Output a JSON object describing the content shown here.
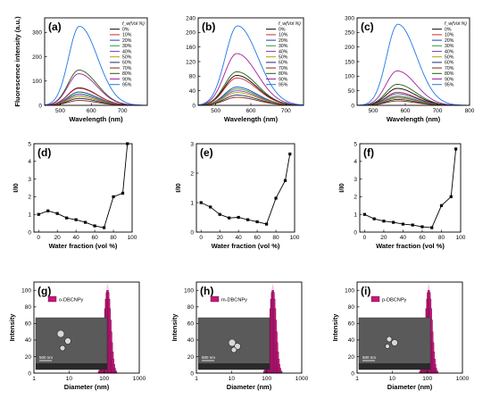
{
  "figure": {
    "panels": [
      "(a)",
      "(b)",
      "(c)",
      "(d)",
      "(e)",
      "(f)",
      "(g)",
      "(h)",
      "(i)"
    ],
    "legend_title": "f_w(Vol %)",
    "legend_labels": [
      "0%",
      "10%",
      "20%",
      "30%",
      "40%",
      "50%",
      "60%",
      "70%",
      "80%",
      "90%",
      "95%"
    ],
    "legend_colors": [
      "#000000",
      "#d62728",
      "#1f3fbf",
      "#2ca02c",
      "#8e44ad",
      "#b0a000",
      "#1a2a6c",
      "#8b2500",
      "#2a5a10",
      "#a020a0",
      "#1f77e4"
    ],
    "sem_scale_label": "500 nm"
  },
  "chart_data": [
    {
      "type": "line",
      "panel": "(a)",
      "xlabel": "Wavelength (nm)",
      "ylabel": "Fluorescence intensity (a.u.)",
      "xlim": [
        450,
        780
      ],
      "ylim": [
        0,
        360
      ],
      "xticks": [
        500,
        600,
        700
      ],
      "yticks": [
        0,
        100,
        200,
        300
      ],
      "peak_wavelength": 560,
      "series": [
        {
          "name": "0%",
          "peak": 72
        },
        {
          "name": "10%",
          "peak": 70
        },
        {
          "name": "20%",
          "peak": 55
        },
        {
          "name": "30%",
          "peak": 48
        },
        {
          "name": "40%",
          "peak": 42
        },
        {
          "name": "50%",
          "peak": 35
        },
        {
          "name": "60%",
          "peak": 28
        },
        {
          "name": "70%",
          "peak": 20
        },
        {
          "name": "80%",
          "peak": 145
        },
        {
          "name": "90%",
          "peak": 130
        },
        {
          "name": "95%",
          "peak": 325
        }
      ]
    },
    {
      "type": "line",
      "panel": "(b)",
      "xlabel": "Wavelength (nm)",
      "ylabel": "",
      "xlim": [
        450,
        750
      ],
      "ylim": [
        0,
        240
      ],
      "xticks": [
        500,
        600,
        700
      ],
      "yticks": [
        0,
        40,
        80,
        120,
        160,
        200,
        240
      ],
      "peak_wavelength": 560,
      "series": [
        {
          "name": "0%",
          "peak": 82
        },
        {
          "name": "10%",
          "peak": 75
        },
        {
          "name": "20%",
          "peak": 50
        },
        {
          "name": "30%",
          "peak": 45
        },
        {
          "name": "40%",
          "peak": 40
        },
        {
          "name": "50%",
          "peak": 35
        },
        {
          "name": "60%",
          "peak": 28
        },
        {
          "name": "70%",
          "peak": 22
        },
        {
          "name": "80%",
          "peak": 92
        },
        {
          "name": "90%",
          "peak": 142
        },
        {
          "name": "95%",
          "peak": 218
        }
      ]
    },
    {
      "type": "line",
      "panel": "(c)",
      "xlabel": "Wavelength (nm)",
      "ylabel": "",
      "xlim": [
        450,
        800
      ],
      "ylim": [
        0,
        300
      ],
      "xticks": [
        500,
        600,
        700,
        800
      ],
      "yticks": [
        0,
        50,
        100,
        150,
        200,
        250,
        300
      ],
      "peak_wavelength": 575,
      "series": [
        {
          "name": "0%",
          "peak": 58
        },
        {
          "name": "10%",
          "peak": 45
        },
        {
          "name": "20%",
          "peak": 40
        },
        {
          "name": "30%",
          "peak": 32
        },
        {
          "name": "40%",
          "peak": 28
        },
        {
          "name": "50%",
          "peak": 25
        },
        {
          "name": "60%",
          "peak": 20
        },
        {
          "name": "70%",
          "peak": 15
        },
        {
          "name": "80%",
          "peak": 72
        },
        {
          "name": "90%",
          "peak": 118
        },
        {
          "name": "95%",
          "peak": 278
        }
      ]
    },
    {
      "type": "line",
      "panel": "(d)",
      "xlabel": "Water fraction (vol %)",
      "ylabel": "I/I0",
      "xlim": [
        -5,
        100
      ],
      "ylim": [
        0,
        5
      ],
      "xticks": [
        0,
        20,
        40,
        60,
        80,
        100
      ],
      "yticks": [
        0,
        1,
        2,
        3,
        4,
        5
      ],
      "x": [
        0,
        10,
        20,
        30,
        40,
        50,
        60,
        70,
        80,
        90,
        95
      ],
      "y": [
        1.0,
        1.2,
        1.05,
        0.8,
        0.7,
        0.55,
        0.35,
        0.25,
        2.0,
        2.2,
        5.0
      ]
    },
    {
      "type": "line",
      "panel": "(e)",
      "xlabel": "Water fraction (vol %)",
      "ylabel": "I/I0",
      "xlim": [
        -5,
        100
      ],
      "ylim": [
        0,
        3
      ],
      "xticks": [
        0,
        20,
        40,
        60,
        80,
        100
      ],
      "yticks": [
        0,
        1,
        2,
        3
      ],
      "x": [
        0,
        10,
        20,
        30,
        40,
        50,
        60,
        70,
        80,
        90,
        95
      ],
      "y": [
        1.0,
        0.85,
        0.6,
        0.48,
        0.5,
        0.42,
        0.35,
        0.27,
        1.15,
        1.75,
        2.65
      ]
    },
    {
      "type": "line",
      "panel": "(f)",
      "xlabel": "Water fraction (vol %)",
      "ylabel": "I/I0",
      "xlim": [
        -5,
        100
      ],
      "ylim": [
        0,
        5
      ],
      "xticks": [
        0,
        20,
        40,
        60,
        80,
        100
      ],
      "yticks": [
        0,
        1,
        2,
        3,
        4,
        5
      ],
      "x": [
        0,
        10,
        20,
        30,
        40,
        50,
        60,
        70,
        80,
        90,
        95
      ],
      "y": [
        1.0,
        0.75,
        0.62,
        0.55,
        0.45,
        0.4,
        0.3,
        0.25,
        1.5,
        2.0,
        4.7
      ]
    },
    {
      "type": "bar",
      "panel": "(g)",
      "series_name": "o-DBCNPy",
      "xlabel": "Diameter (nm)",
      "ylabel": "Intensity",
      "xscale": "log",
      "xlim": [
        1,
        1000
      ],
      "ylim": [
        0,
        110
      ],
      "xticks": [
        1,
        10,
        100,
        1000
      ],
      "xtick_labels": [
        "1",
        "10",
        "100",
        "1000"
      ],
      "yticks": [
        0,
        20,
        40,
        60,
        80,
        100
      ],
      "center_diameter": 125,
      "peak": 100
    },
    {
      "type": "bar",
      "panel": "(h)",
      "series_name": "m-DBCNPy",
      "xlabel": "Diameter (nm)",
      "ylabel": "Intensity",
      "xscale": "log",
      "xlim": [
        1,
        1000
      ],
      "ylim": [
        0,
        110
      ],
      "xticks": [
        1,
        10,
        100,
        1000
      ],
      "xtick_labels": [
        "1",
        "10",
        "100",
        "1000"
      ],
      "yticks": [
        0,
        20,
        40,
        60,
        80,
        100
      ],
      "center_diameter": 150,
      "peak": 100
    },
    {
      "type": "bar",
      "panel": "(i)",
      "series_name": "p-DBCNPy",
      "xlabel": "Diameter (nm)",
      "ylabel": "Intensity",
      "xscale": "log",
      "xlim": [
        1,
        1000
      ],
      "ylim": [
        0,
        110
      ],
      "xticks": [
        1,
        10,
        100,
        1000
      ],
      "xtick_labels": [
        "1",
        "10",
        "100",
        "1000"
      ],
      "yticks": [
        0,
        20,
        40,
        60,
        80,
        100
      ],
      "center_diameter": 110,
      "peak": 100
    }
  ]
}
